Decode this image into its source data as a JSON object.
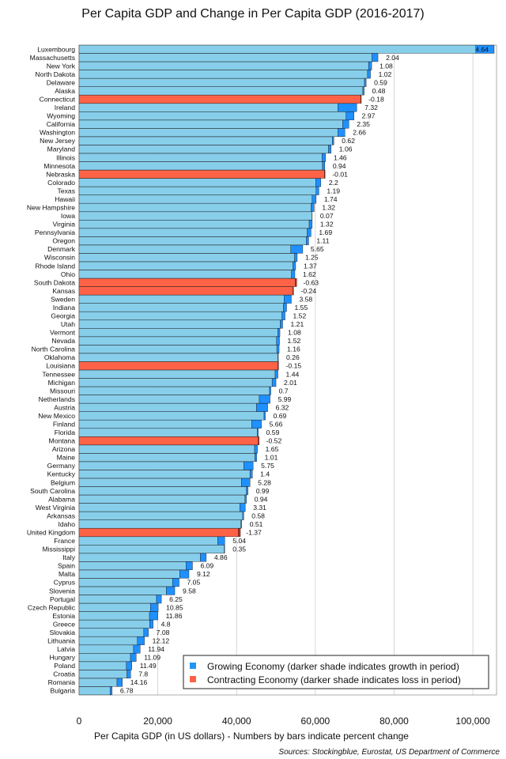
{
  "chart_data": {
    "type": "bar",
    "orientation": "horizontal",
    "title": "Per Capita GDP and Change in Per Capita GDP (2016-2017)",
    "xlabel": "Per Capita GDP (in US dollars) - Numbers by bars indicate percent change",
    "source": "Sources: Stockingblue, Eurostat, US Department of Commerce",
    "xlim": [
      0,
      106000
    ],
    "xticks": [
      0,
      20000,
      40000,
      60000,
      80000,
      100000
    ],
    "xtick_labels": [
      "0",
      "20,000",
      "40,000",
      "60,000",
      "80,000",
      "100,000"
    ],
    "grid": true,
    "legend_position": "bottom-right",
    "legend": [
      {
        "label": "Growing Economy (darker shade indicates growth in period)",
        "color": "#2196f3"
      },
      {
        "label": "Contracting Economy (darker shade indicates loss in period)",
        "color": "#ff6347"
      }
    ],
    "colors": {
      "growing_light": "#87ceeb",
      "growing_dark": "#1e90ff",
      "contracting_light": "#ff6347",
      "contracting_dark": "#cc2b1a",
      "grid": "#cccccc"
    },
    "categories": [
      "Luxembourg",
      "Massachusetts",
      "New York",
      "North Dakota",
      "Delaware",
      "Alaska",
      "Connecticut",
      "Ireland",
      "Wyoming",
      "California",
      "Washington",
      "New Jersey",
      "Maryland",
      "Illinois",
      "Minnesota",
      "Nebraska",
      "Colorado",
      "Texas",
      "Hawaii",
      "New Hampshire",
      "Iowa",
      "Virginia",
      "Pennsylvania",
      "Oregon",
      "Denmark",
      "Wisconsin",
      "Rhode Island",
      "Ohio",
      "South Dakota",
      "Kansas",
      "Sweden",
      "Indiana",
      "Georgia",
      "Utah",
      "Vermont",
      "Nevada",
      "North Carolina",
      "Oklahoma",
      "Louisiana",
      "Tennessee",
      "Michigan",
      "Missouri",
      "Netherlands",
      "Austria",
      "New Mexico",
      "Finland",
      "Florida",
      "Montana",
      "Arizona",
      "Maine",
      "Germany",
      "Kentucky",
      "Belgium",
      "South Carolina",
      "Alabama",
      "West Virginia",
      "Arkansas",
      "Idaho",
      "United Kingdom",
      "France",
      "Mississippi",
      "Italy",
      "Spain",
      "Malta",
      "Cyprus",
      "Slovenia",
      "Portugal",
      "Czech Republic",
      "Estonia",
      "Greece",
      "Slovakia",
      "Lithuania",
      "Latvia",
      "Hungary",
      "Poland",
      "Croatia",
      "Romania",
      "Bulgaria"
    ],
    "values": [
      105400,
      75900,
      74300,
      74000,
      72900,
      72400,
      71500,
      70500,
      69800,
      68500,
      67500,
      64700,
      64000,
      62600,
      62400,
      62300,
      61400,
      60900,
      60200,
      59700,
      59200,
      59200,
      58900,
      58300,
      56800,
      55400,
      55000,
      54800,
      54900,
      54300,
      53900,
      52700,
      52300,
      51700,
      51000,
      50900,
      50800,
      50600,
      50500,
      50500,
      50000,
      48700,
      48500,
      47900,
      47300,
      46300,
      45500,
      45500,
      45300,
      45100,
      44200,
      44000,
      43400,
      42900,
      42500,
      42200,
      41800,
      41300,
      40400,
      37000,
      37000,
      32300,
      28800,
      27900,
      25400,
      24300,
      20900,
      20100,
      20000,
      18800,
      17600,
      16600,
      15500,
      14500,
      13400,
      13100,
      11000,
      8400
    ],
    "change_labels": [
      "4.64",
      "2.04",
      "1.08",
      "1.02",
      "0.59",
      "0.48",
      "-0.18",
      "7.32",
      "2.97",
      "2.35",
      "2.66",
      "0.62",
      "1.06",
      "1.46",
      "0.94",
      "-0.01",
      "2.2",
      "1.19",
      "1.74",
      "1.32",
      "0.07",
      "1.32",
      "1.69",
      "1.11",
      "5.65",
      "1.25",
      "1.37",
      "1.62",
      "-0.63",
      "-0.24",
      "3.58",
      "1.55",
      "1.52",
      "1.21",
      "1.08",
      "1.52",
      "1.16",
      "0.26",
      "-0.15",
      "1.44",
      "2.01",
      "0.7",
      "5.99",
      "6.32",
      "0.69",
      "5.66",
      "0.59",
      "-0.52",
      "1.65",
      "1.01",
      "5.75",
      "1.4",
      "5.28",
      "0.99",
      "0.94",
      "3.31",
      "0.58",
      "0.51",
      "-1.37",
      "5.04",
      "0.35",
      "4.86",
      "6.09",
      "9.12",
      "7.05",
      "9.58",
      "6.25",
      "10.85",
      "11.86",
      "4.8",
      "7.08",
      "12.12",
      "11.94",
      "11.09",
      "11.49",
      "7.8",
      "14.16",
      "6.78"
    ]
  }
}
